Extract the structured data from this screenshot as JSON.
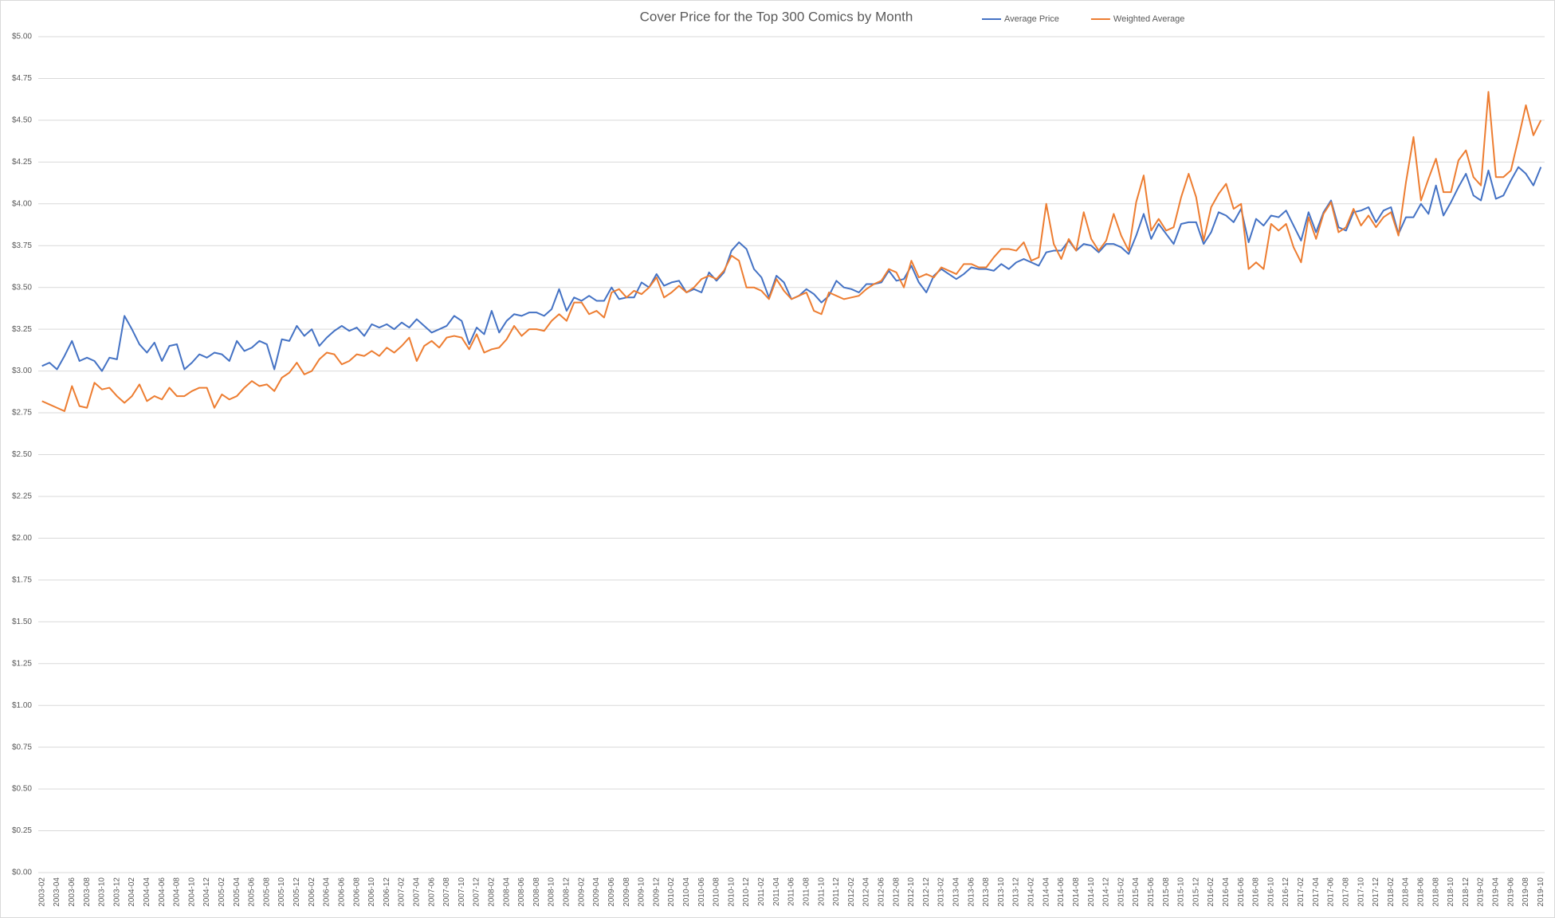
{
  "chart_data": {
    "type": "line",
    "title": "Cover Price for the Top 300 Comics by Month",
    "categories": [
      "2003-02",
      null,
      "2003-04",
      null,
      "2003-06",
      null,
      "2003-08",
      null,
      "2003-10",
      null,
      "2003-12",
      null,
      "2004-02",
      null,
      "2004-04",
      null,
      "2004-06",
      null,
      "2004-08",
      null,
      "2004-10",
      null,
      "2004-12",
      null,
      "2005-02",
      null,
      "2005-04",
      null,
      "2005-06",
      null,
      "2005-08",
      null,
      "2005-10",
      null,
      "2005-12",
      null,
      "2006-02",
      null,
      "2006-04",
      null,
      "2006-06",
      null,
      "2006-08",
      null,
      "2006-10",
      null,
      "2006-12",
      null,
      "2007-02",
      null,
      "2007-04",
      null,
      "2007-06",
      null,
      "2007-08",
      null,
      "2007-10",
      null,
      "2007-12",
      null,
      "2008-02",
      null,
      "2008-04",
      null,
      "2008-06",
      null,
      "2008-08",
      null,
      "2008-10",
      null,
      "2008-12",
      null,
      "2009-02",
      null,
      "2009-04",
      null,
      "2009-06",
      null,
      "2009-08",
      null,
      "2009-10",
      null,
      "2009-12",
      null,
      "2010-02",
      null,
      "2010-04",
      null,
      "2010-06",
      null,
      "2010-08",
      null,
      "2010-10",
      null,
      "2010-12",
      null,
      "2011-02",
      null,
      "2011-04",
      null,
      "2011-06",
      null,
      "2011-08",
      null,
      "2011-10",
      null,
      "2011-12",
      null,
      "2012-02",
      null,
      "2012-04",
      null,
      "2012-06",
      null,
      "2012-08",
      null,
      "2012-10",
      null,
      "2012-12",
      null,
      "2013-02",
      null,
      "2013-04",
      null,
      "2013-06",
      null,
      "2013-08",
      null,
      "2013-10",
      null,
      "2013-12",
      null,
      "2014-02",
      null,
      "2014-04",
      null,
      "2014-06",
      null,
      "2014-08",
      null,
      "2014-10",
      null,
      "2014-12",
      null,
      "2015-02",
      null,
      "2015-04",
      null,
      "2015-06",
      null,
      "2015-08",
      null,
      "2015-10",
      null,
      "2015-12",
      null,
      "2016-02",
      null,
      "2016-04",
      null,
      "2016-06",
      null,
      "2016-08",
      null,
      "2016-10",
      null,
      "2016-12",
      null,
      "2017-02",
      null,
      "2017-04",
      null,
      "2017-06",
      null,
      "2017-08",
      null,
      "2017-10",
      null,
      "2017-12",
      null,
      "2018-02",
      null,
      "2018-04",
      null,
      "2018-06",
      null,
      "2018-08",
      null,
      "2018-10",
      null,
      "2018-12",
      null,
      "2019-02",
      null,
      "2019-04",
      null,
      "2019-06",
      null,
      "2019-08",
      null,
      "2019-10"
    ],
    "series": [
      {
        "name": "Average Price",
        "color": "#4472c4",
        "values": [
          3.03,
          3.05,
          3.01,
          3.09,
          3.18,
          3.06,
          3.08,
          3.06,
          3.0,
          3.08,
          3.07,
          3.33,
          3.25,
          3.16,
          3.11,
          3.17,
          3.06,
          3.15,
          3.16,
          3.01,
          3.05,
          3.1,
          3.08,
          3.11,
          3.1,
          3.06,
          3.18,
          3.12,
          3.14,
          3.18,
          3.16,
          3.01,
          3.19,
          3.18,
          3.27,
          3.21,
          3.25,
          3.15,
          3.2,
          3.24,
          3.27,
          3.24,
          3.26,
          3.21,
          3.28,
          3.26,
          3.28,
          3.25,
          3.29,
          3.26,
          3.31,
          3.27,
          3.23,
          3.25,
          3.27,
          3.33,
          3.3,
          3.16,
          3.26,
          3.22,
          3.36,
          3.23,
          3.3,
          3.34,
          3.33,
          3.35,
          3.35,
          3.33,
          3.37,
          3.49,
          3.36,
          3.44,
          3.42,
          3.45,
          3.42,
          3.42,
          3.5,
          3.43,
          3.44,
          3.44,
          3.53,
          3.5,
          3.58,
          3.51,
          3.53,
          3.54,
          3.47,
          3.49,
          3.47,
          3.59,
          3.54,
          3.59,
          3.72,
          3.77,
          3.73,
          3.61,
          3.56,
          3.44,
          3.57,
          3.53,
          3.43,
          3.45,
          3.49,
          3.46,
          3.41,
          3.45,
          3.54,
          3.5,
          3.49,
          3.47,
          3.52,
          3.52,
          3.53,
          3.6,
          3.54,
          3.55,
          3.63,
          3.53,
          3.47,
          3.57,
          3.61,
          3.58,
          3.55,
          3.58,
          3.62,
          3.61,
          3.61,
          3.6,
          3.64,
          3.61,
          3.65,
          3.67,
          3.65,
          3.63,
          3.71,
          3.72,
          3.72,
          3.78,
          3.72,
          3.76,
          3.75,
          3.71,
          3.76,
          3.76,
          3.74,
          3.7,
          3.81,
          3.94,
          3.79,
          3.88,
          3.82,
          3.76,
          3.88,
          3.89,
          3.89,
          3.76,
          3.83,
          3.95,
          3.93,
          3.89,
          3.97,
          3.77,
          3.91,
          3.87,
          3.93,
          3.92,
          3.96,
          3.87,
          3.78,
          3.95,
          3.83,
          3.95,
          4.02,
          3.86,
          3.84,
          3.95,
          3.96,
          3.98,
          3.89,
          3.96,
          3.98,
          3.82,
          3.92,
          3.92,
          4.0,
          3.94,
          4.11,
          3.93,
          4.01,
          4.1,
          4.18,
          4.05,
          4.02,
          4.2,
          4.03,
          4.05,
          4.14,
          4.22,
          4.18,
          4.11,
          4.22
        ]
      },
      {
        "name": "Weighted Average",
        "color": "#ed7d31",
        "values": [
          2.82,
          2.8,
          2.78,
          2.76,
          2.91,
          2.79,
          2.78,
          2.93,
          2.89,
          2.9,
          2.85,
          2.81,
          2.85,
          2.92,
          2.82,
          2.85,
          2.83,
          2.9,
          2.85,
          2.85,
          2.88,
          2.9,
          2.9,
          2.78,
          2.86,
          2.83,
          2.85,
          2.9,
          2.94,
          2.91,
          2.92,
          2.88,
          2.96,
          2.99,
          3.05,
          2.98,
          3.0,
          3.07,
          3.11,
          3.1,
          3.04,
          3.06,
          3.1,
          3.09,
          3.12,
          3.09,
          3.14,
          3.11,
          3.15,
          3.2,
          3.06,
          3.15,
          3.18,
          3.14,
          3.2,
          3.21,
          3.2,
          3.13,
          3.22,
          3.11,
          3.13,
          3.14,
          3.19,
          3.27,
          3.21,
          3.25,
          3.25,
          3.24,
          3.3,
          3.34,
          3.3,
          3.41,
          3.41,
          3.34,
          3.36,
          3.32,
          3.47,
          3.49,
          3.44,
          3.48,
          3.46,
          3.5,
          3.56,
          3.44,
          3.47,
          3.51,
          3.47,
          3.5,
          3.55,
          3.57,
          3.55,
          3.6,
          3.69,
          3.66,
          3.5,
          3.5,
          3.48,
          3.43,
          3.55,
          3.48,
          3.43,
          3.45,
          3.47,
          3.36,
          3.34,
          3.47,
          3.45,
          3.43,
          3.44,
          3.45,
          3.49,
          3.52,
          3.54,
          3.61,
          3.59,
          3.5,
          3.66,
          3.56,
          3.58,
          3.56,
          3.62,
          3.6,
          3.58,
          3.64,
          3.64,
          3.62,
          3.62,
          3.68,
          3.73,
          3.73,
          3.72,
          3.77,
          3.66,
          3.68,
          4.0,
          3.76,
          3.67,
          3.79,
          3.72,
          3.95,
          3.79,
          3.72,
          3.78,
          3.94,
          3.81,
          3.72,
          4.01,
          4.17,
          3.84,
          3.91,
          3.84,
          3.86,
          4.04,
          4.18,
          4.04,
          3.78,
          3.98,
          4.06,
          4.12,
          3.97,
          4.0,
          3.61,
          3.65,
          3.61,
          3.88,
          3.84,
          3.88,
          3.74,
          3.65,
          3.92,
          3.79,
          3.94,
          4.01,
          3.83,
          3.86,
          3.97,
          3.87,
          3.93,
          3.86,
          3.92,
          3.95,
          3.81,
          4.13,
          4.4,
          4.02,
          4.15,
          4.27,
          4.07,
          4.07,
          4.26,
          4.32,
          4.16,
          4.11,
          4.67,
          4.16,
          4.16,
          4.2,
          4.39,
          4.59,
          4.41,
          4.5
        ]
      }
    ],
    "ylim": [
      0,
      5
    ],
    "yticks": [
      {
        "value": 0,
        "label": "$0.00"
      },
      {
        "value": 0.25,
        "label": "$0.25"
      },
      {
        "value": 0.5,
        "label": "$0.50"
      },
      {
        "value": 0.75,
        "label": "$0.75"
      },
      {
        "value": 1,
        "label": "$1.00"
      },
      {
        "value": 1.25,
        "label": "$1.25"
      },
      {
        "value": 1.5,
        "label": "$1.50"
      },
      {
        "value": 1.75,
        "label": "$1.75"
      },
      {
        "value": 2,
        "label": "$2.00"
      },
      {
        "value": 2.25,
        "label": "$2.25"
      },
      {
        "value": 2.5,
        "label": "$2.50"
      },
      {
        "value": 2.75,
        "label": "$2.75"
      },
      {
        "value": 3,
        "label": "$3.00"
      },
      {
        "value": 3.25,
        "label": "$3.25"
      },
      {
        "value": 3.5,
        "label": "$3.50"
      },
      {
        "value": 3.75,
        "label": "$3.75"
      },
      {
        "value": 4,
        "label": "$4.00"
      },
      {
        "value": 4.25,
        "label": "$4.25"
      },
      {
        "value": 4.5,
        "label": "$4.50"
      },
      {
        "value": 4.75,
        "label": "$4.75"
      },
      {
        "value": 5,
        "label": "$5.00"
      }
    ],
    "grid": true
  }
}
